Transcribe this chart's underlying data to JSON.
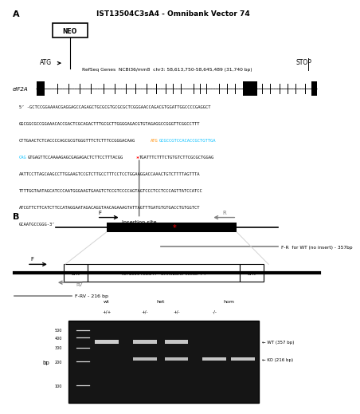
{
  "title_A": "IST13504C3sA4 - Omnibank Vector 74",
  "neo_label": "NEO",
  "atg_label": "ATG",
  "stop_label": "STOP",
  "refseq_label": "RefSeq Genes  NCBI36/mm8  chr3: 58,613,750-58,645,489 (31,740 bp)",
  "eif2a_label": "eIF2A",
  "insertion_label": "Insertion site",
  "wt_label": "wt",
  "het_label": "het",
  "hom_label": "hom",
  "wt_genotype": "+/+",
  "het_genotype1": "+/-",
  "het_genotype2": "+/-",
  "hom_genotype": "-/-",
  "F_R_label": "F-R  for WT (no insert) - 357bp",
  "FRV_label": "F-RV - 216 bp",
  "vector_label": "IST13504C3sA4 - Omnibank Vector 74",
  "bp_label": "bp",
  "wt_band_label": "WT (357 bp)",
  "ko_band_label": "KO (216 bp)",
  "bg_color": "#ffffff",
  "orange_color": "#ff8c00",
  "cyan_color": "#00bfff",
  "red_color": "#ff0000",
  "seq_line1": "5’ -GCTCCGGAAAACGAGGAGCCAGAGCTGCGCGTGCGCGCTCGGGAACCAGACGTGGATTGGCCCCGAGGCT",
  "seq_line2": "GGCGGCGCCGGAAACACCGACTCGCAGACTTTGCGCTTGGGGAGACGTGTAGAGGCCGGGTTCGGCCTTT",
  "seq_line3_pre": "CTTGAACTCTCACCCCAGCGCGTGGGTTTCTCTTTCCGGGACAAG",
  "seq_line3_orange": "ATG",
  "seq_line3_cyan": "GCGCCGTCCACACCGCTGTTGA",
  "seq_line4_cyan": "CAG",
  "seq_line4_black1": "GTGAGTTCCAAAAGAGCGAGAGACTCTTCCTTTACGG",
  "seq_line4_black2": "TGATTTCTTTCTGTGTCTTCGCGCTGGAG",
  "seq_line5": "AATTCCTTAGCAAGCCTTGGAAGTCCGTCTTGCCTTTCCTCCTGGAAGGACCAAACTGTCTTTTAGTTTA",
  "seq_line6": "TTTTGGTAATAGCATCCCAATGGGAAGTGAAGTCTCCGTCCCCAGTAGTCCCTCCTCCCAGTTATCCATCC",
  "seq_line7": "ATCGTTCTTCATCTTCCATAGGAATAGACAGGTAACAGAAAGTATTAGTTTGATGTGTGACCTGTGGTCT",
  "seq_line8": "GCAATGCCGGG-3’",
  "ladder_bps": [
    500,
    400,
    300,
    200,
    100
  ]
}
